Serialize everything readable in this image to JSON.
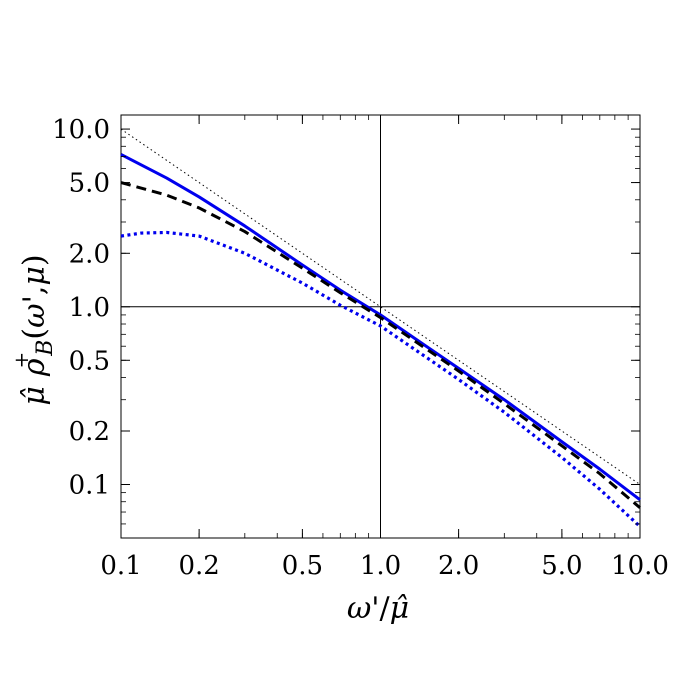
{
  "chart_data": {
    "type": "line",
    "xscale": "log",
    "yscale": "log",
    "xlim": [
      0.1,
      10.0
    ],
    "ylim": [
      0.05,
      12.0
    ],
    "xticks": [
      0.1,
      0.2,
      0.5,
      1.0,
      2.0,
      5.0,
      10.0
    ],
    "xtick_labels": [
      "0.1",
      "0.2",
      "0.5",
      "1.0",
      "2.0",
      "5.0",
      "10.0"
    ],
    "yticks": [
      0.1,
      0.2,
      0.5,
      1.0,
      2.0,
      5.0,
      10.0
    ],
    "ytick_labels": [
      "0.1",
      "0.2",
      "0.5",
      "1.0",
      "2.0",
      "5.0",
      "10.0"
    ],
    "xlabel": "ω'/μ̂",
    "ylabel": "μ̂ ρ⁺B(ω',μ)",
    "reference_lines": {
      "x": 1.0,
      "y": 1.0
    },
    "grid": false,
    "series": [
      {
        "style": "thin-dotted",
        "color": "#000000",
        "x": [
          0.1,
          0.2,
          0.5,
          1.0,
          2.0,
          5.0,
          10.0
        ],
        "y": [
          10.0,
          5.0,
          2.0,
          1.0,
          0.5,
          0.2,
          0.1
        ]
      },
      {
        "style": "solid",
        "color": "#0000ee",
        "x": [
          0.1,
          0.15,
          0.2,
          0.3,
          0.5,
          0.7,
          1.0,
          1.5,
          2.0,
          3.0,
          5.0,
          7.0,
          10.0
        ],
        "y": [
          7.2,
          5.3,
          4.15,
          2.85,
          1.72,
          1.24,
          0.9,
          0.6,
          0.45,
          0.3,
          0.174,
          0.122,
          0.082
        ]
      },
      {
        "style": "dashed",
        "color": "#000000",
        "x": [
          0.1,
          0.15,
          0.2,
          0.3,
          0.5,
          0.7,
          1.0,
          1.5,
          2.0,
          3.0,
          5.0,
          7.0,
          10.0
        ],
        "y": [
          5.0,
          4.25,
          3.6,
          2.65,
          1.65,
          1.2,
          0.87,
          0.58,
          0.435,
          0.285,
          0.165,
          0.115,
          0.074
        ]
      },
      {
        "style": "dotted",
        "color": "#0000ee",
        "x": [
          0.1,
          0.12,
          0.15,
          0.2,
          0.3,
          0.5,
          0.7,
          1.0,
          1.5,
          2.0,
          3.0,
          5.0,
          7.0,
          10.0
        ],
        "y": [
          2.5,
          2.6,
          2.62,
          2.5,
          2.0,
          1.36,
          1.02,
          0.78,
          0.52,
          0.39,
          0.255,
          0.142,
          0.094,
          0.058
        ]
      }
    ]
  }
}
